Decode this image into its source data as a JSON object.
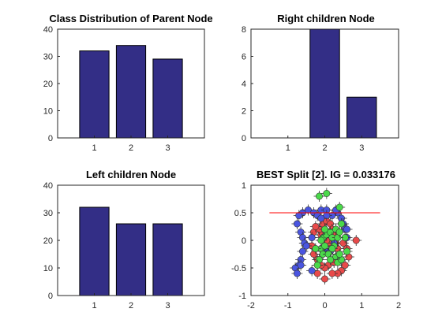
{
  "chart_data": [
    {
      "type": "bar",
      "title": "Class Distribution of Parent Node",
      "categories": [
        "1",
        "2",
        "3"
      ],
      "values": [
        32,
        34,
        29
      ],
      "ylim": [
        0,
        40
      ],
      "yticks": [
        "0",
        "10",
        "20",
        "30",
        "40"
      ],
      "bar_color": "#332e86"
    },
    {
      "type": "bar",
      "title": "Right children Node",
      "categories": [
        "1",
        "2",
        "3"
      ],
      "values": [
        0,
        8,
        3
      ],
      "ylim": [
        0,
        8
      ],
      "yticks": [
        "0",
        "2",
        "4",
        "6",
        "8"
      ],
      "bar_color": "#332e86"
    },
    {
      "type": "bar",
      "title": "Left children Node",
      "categories": [
        "1",
        "2",
        "3"
      ],
      "values": [
        32,
        26,
        26
      ],
      "ylim": [
        0,
        40
      ],
      "yticks": [
        "0",
        "10",
        "20",
        "30",
        "40"
      ],
      "bar_color": "#332e86"
    },
    {
      "type": "scatter",
      "title": "BEST Split [2]. IG = 0.033176",
      "xlim": [
        -2,
        2
      ],
      "ylim": [
        -1,
        1
      ],
      "xticks": [
        "-2",
        "-1",
        "0",
        "1",
        "2"
      ],
      "yticks": [
        "-1",
        "-0.5",
        "0",
        "0.5",
        "1"
      ],
      "split_line": {
        "x": [
          -1.5,
          1.5
        ],
        "y": [
          0.5,
          0.5
        ],
        "color": "#ff0000"
      },
      "series": [
        {
          "color": "#e84a4a",
          "points": [
            [
              -0.1,
              0.1
            ],
            [
              -0.15,
              0.2
            ],
            [
              -0.05,
              0.3
            ],
            [
              0.05,
              0.35
            ],
            [
              0.15,
              0.3
            ],
            [
              0.2,
              0.2
            ],
            [
              0.25,
              0.1
            ],
            [
              0.3,
              -0.05
            ],
            [
              0.35,
              -0.15
            ],
            [
              0.3,
              -0.3
            ],
            [
              0.25,
              -0.4
            ],
            [
              0.1,
              -0.45
            ],
            [
              0.0,
              -0.5
            ],
            [
              -0.1,
              -0.45
            ],
            [
              -0.2,
              -0.35
            ],
            [
              -0.3,
              -0.25
            ],
            [
              -0.35,
              -0.1
            ],
            [
              -0.35,
              0.05
            ],
            [
              -0.3,
              0.15
            ],
            [
              -0.25,
              0.25
            ],
            [
              0.1,
              -0.05
            ],
            [
              0.05,
              0.0
            ],
            [
              0.5,
              -0.05
            ],
            [
              0.6,
              -0.15
            ],
            [
              0.65,
              -0.3
            ],
            [
              0.55,
              -0.45
            ],
            [
              0.45,
              -0.55
            ],
            [
              0.35,
              -0.6
            ],
            [
              0.2,
              -0.6
            ],
            [
              0.85,
              0.0
            ],
            [
              0.0,
              -0.7
            ],
            [
              -0.2,
              -0.6
            ]
          ]
        },
        {
          "color": "#4a55e0",
          "points": [
            [
              -0.6,
              0.5
            ],
            [
              -0.45,
              0.55
            ],
            [
              -0.3,
              0.5
            ],
            [
              -0.2,
              0.45
            ],
            [
              -0.1,
              0.55
            ],
            [
              0.05,
              0.55
            ],
            [
              0.2,
              0.45
            ],
            [
              0.35,
              0.5
            ],
            [
              0.45,
              0.4
            ],
            [
              0.5,
              0.3
            ],
            [
              0.55,
              0.2
            ],
            [
              -0.7,
              0.45
            ],
            [
              -0.75,
              0.3
            ],
            [
              -0.65,
              0.15
            ],
            [
              -0.6,
              0.05
            ],
            [
              -0.55,
              -0.05
            ],
            [
              -0.6,
              -0.2
            ],
            [
              -0.65,
              -0.35
            ],
            [
              -0.7,
              -0.45
            ],
            [
              -0.8,
              -0.5
            ],
            [
              -0.75,
              -0.6
            ],
            [
              0.05,
              -0.2
            ],
            [
              -0.05,
              -0.2
            ],
            [
              0.15,
              -0.2
            ],
            [
              0.6,
              0.05
            ],
            [
              0.05,
              0.45
            ],
            [
              -0.35,
              0.05
            ],
            [
              0.25,
              -0.05
            ],
            [
              -0.1,
              0.4
            ],
            [
              -0.5,
              -0.1
            ],
            [
              -0.65,
              -0.45
            ],
            [
              -0.35,
              -0.55
            ],
            [
              0.3,
              0.55
            ],
            [
              0.6,
              0.2
            ]
          ]
        },
        {
          "color": "#4ad94a",
          "points": [
            [
              -0.15,
              0.8
            ],
            [
              0.05,
              0.85
            ],
            [
              0.4,
              0.6
            ],
            [
              0.45,
              0.3
            ],
            [
              -0.05,
              0.05
            ],
            [
              0.05,
              0.1
            ],
            [
              -0.1,
              -0.15
            ],
            [
              -0.05,
              -0.25
            ],
            [
              -0.15,
              -0.35
            ],
            [
              -0.2,
              -0.45
            ],
            [
              0.15,
              0.15
            ],
            [
              0.2,
              0.05
            ],
            [
              0.25,
              -0.1
            ],
            [
              0.1,
              -0.25
            ],
            [
              0.3,
              -0.3
            ],
            [
              0.35,
              -0.4
            ],
            [
              0.45,
              -0.35
            ],
            [
              0.6,
              -0.2
            ],
            [
              0.55,
              0.05
            ],
            [
              0.3,
              0.2
            ],
            [
              0.15,
              -0.35
            ],
            [
              -0.25,
              -0.15
            ],
            [
              0.0,
              -0.1
            ],
            [
              0.4,
              -0.25
            ],
            [
              0.35,
              0.05
            ],
            [
              0.4,
              0.15
            ],
            [
              0.2,
              -0.15
            ],
            [
              0.0,
              0.2
            ],
            [
              -0.1,
              0.0
            ]
          ]
        }
      ]
    }
  ]
}
